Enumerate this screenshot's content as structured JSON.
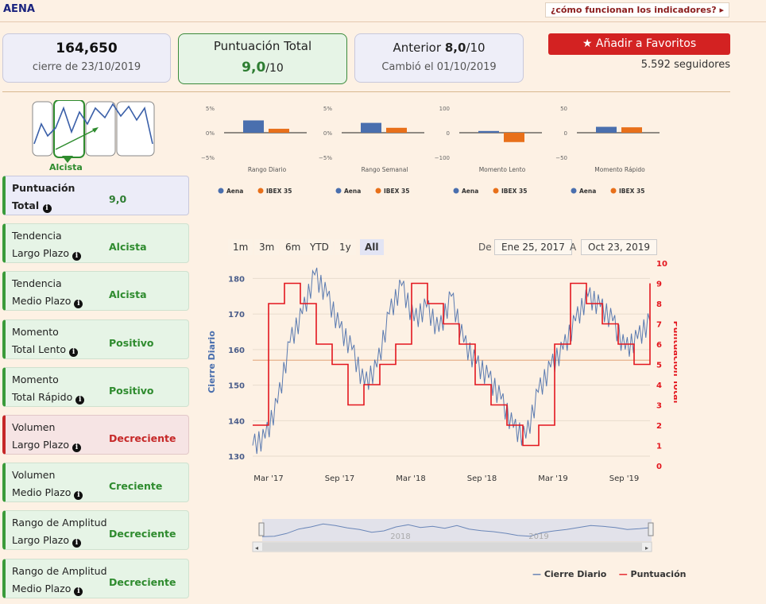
{
  "header": {
    "ticker": "AENA",
    "how_link": "¿cómo funcionan los indicadores?",
    "how_link_arrow": "▸"
  },
  "cards": {
    "price": "164,650",
    "price_sub": "cierre de 23/10/2019",
    "score_label": "Puntuación Total",
    "score_value": "9,0",
    "score_den": "/10",
    "prev_label": "Anterior",
    "prev_value": "8,0",
    "prev_den": "/10",
    "prev_sub": "Cambió el 01/10/2019"
  },
  "favorites": {
    "icon": "star-icon",
    "label": "Añadir a Favoritos",
    "followers": "5.592 seguidores"
  },
  "thumb": {
    "label": "Alcista"
  },
  "indicators": [
    {
      "line1": "Puntuación",
      "line2": "Total",
      "value": "9,0"
    },
    {
      "line1": "Tendencia",
      "line2": "Largo Plazo",
      "value": "Alcista"
    },
    {
      "line1": "Tendencia",
      "line2": "Medio Plazo",
      "value": "Alcista"
    },
    {
      "line1": "Momento",
      "line2": "Total Lento",
      "value": "Positivo"
    },
    {
      "line1": "Momento",
      "line2": "Total Rápido",
      "value": "Positivo"
    },
    {
      "line1": "Volumen",
      "line2": "Largo Plazo",
      "value": "Decreciente"
    },
    {
      "line1": "Volumen",
      "line2": "Medio Plazo",
      "value": "Creciente"
    },
    {
      "line1": "Rango de Amplitud",
      "line2": "Largo Plazo",
      "value": "Decreciente"
    },
    {
      "line1": "Rango de Amplitud",
      "line2": "Medio Plazo",
      "value": "Decreciente"
    }
  ],
  "info_icon": "i",
  "colors": {
    "aena": "#4a6fae",
    "ibex": "#e8701a",
    "price": "#5a7ab0",
    "score": "#e3161e",
    "positive": "#2e8b2e",
    "negative": "#c62828"
  },
  "chart_data": [
    {
      "type": "bar",
      "title": "",
      "xlabel": "Rango Diario",
      "yticks": [
        "5%",
        "0%",
        "−5%"
      ],
      "ylim": [
        -5,
        5
      ],
      "series": [
        {
          "name": "Aena",
          "values": [
            2.5
          ]
        },
        {
          "name": "IBEX 35",
          "values": [
            0.8
          ]
        }
      ]
    },
    {
      "type": "bar",
      "title": "",
      "xlabel": "Rango Semanal",
      "yticks": [
        "5%",
        "0%",
        "−5%"
      ],
      "ylim": [
        -5,
        5
      ],
      "series": [
        {
          "name": "Aena",
          "values": [
            2.0
          ]
        },
        {
          "name": "IBEX 35",
          "values": [
            1.0
          ]
        }
      ]
    },
    {
      "type": "bar",
      "title": "",
      "xlabel": "Momento Lento",
      "yticks": [
        "100",
        "0",
        "−100"
      ],
      "ylim": [
        -100,
        100
      ],
      "series": [
        {
          "name": "Aena",
          "values": [
            7
          ]
        },
        {
          "name": "IBEX 35",
          "values": [
            -38
          ]
        }
      ]
    },
    {
      "type": "bar",
      "title": "",
      "xlabel": "Momento Rápido",
      "yticks": [
        "50",
        "0",
        "−50"
      ],
      "ylim": [
        -50,
        50
      ],
      "series": [
        {
          "name": "Aena",
          "values": [
            12
          ]
        },
        {
          "name": "IBEX 35",
          "values": [
            11
          ]
        }
      ]
    },
    {
      "type": "line",
      "title": "",
      "ylabel": "Cierre Diario",
      "y2label": "Puntuación Total",
      "ylim": [
        128,
        185
      ],
      "y2lim": [
        0,
        10
      ],
      "yticks": [
        "130",
        "140",
        "150",
        "160",
        "170",
        "180"
      ],
      "y2ticks": [
        "0",
        "1",
        "2",
        "3",
        "4",
        "5",
        "6",
        "7",
        "8",
        "9",
        "10"
      ],
      "xticks": [
        "Mar '17",
        "Sep '17",
        "Mar '18",
        "Sep '18",
        "Mar '19",
        "Sep '19"
      ],
      "navigator_labels": [
        "2018",
        "2019"
      ],
      "range_buttons": [
        "1m",
        "3m",
        "6m",
        "YTD",
        "1y",
        "All"
      ],
      "selected_range": "All",
      "from_label": "De",
      "from_date": "Ene 25, 2017",
      "to_label": "A",
      "to_date": "Oct 23, 2019",
      "reference_line": 157,
      "series": [
        {
          "name": "Cierre Diario",
          "x": [
            "Ene 2017",
            "Mar 2017",
            "Abr 2017",
            "May 2017",
            "Jun 2017",
            "Jul 2017",
            "Ago 2017",
            "Sep 2017",
            "Oct 2017",
            "Nov 2017",
            "Dic 2017",
            "Ene 2018",
            "Feb 2018",
            "Mar 2018",
            "Abr 2018",
            "May 2018",
            "Jun 2018",
            "Jul 2018",
            "Ago 2018",
            "Sep 2018",
            "Oct 2018",
            "Nov 2018",
            "Dic 2018",
            "Ene 2019",
            "Feb 2019",
            "Mar 2019",
            "Abr 2019",
            "May 2019",
            "Jun 2019",
            "Jul 2019",
            "Ago 2019",
            "Sep 2019",
            "Oct 2019"
          ],
          "values": [
            133,
            135,
            145,
            162,
            170,
            181,
            175,
            166,
            160,
            150,
            155,
            170,
            178,
            168,
            172,
            165,
            175,
            162,
            156,
            152,
            146,
            138,
            135,
            148,
            155,
            160,
            168,
            175,
            172,
            168,
            160,
            163,
            168
          ]
        },
        {
          "name": "Puntuación",
          "x": [
            "Ene 2017",
            "Mar 2017",
            "Jun 2017",
            "Ago 2017",
            "Sep 2017",
            "Oct 2017",
            "Nov 2017",
            "Dic 2017",
            "Ene 2018",
            "Feb 2018",
            "Abr 2018",
            "May 2018",
            "Jun 2018",
            "Jul 2018",
            "Ago 2018",
            "Sep 2018",
            "Oct 2018",
            "Dic 2018",
            "Ene 2019",
            "Mar 2019",
            "Abr 2019",
            "Jun 2019",
            "Jul 2019",
            "Ago 2019",
            "Sep 2019",
            "Oct 2019"
          ],
          "values": [
            2,
            8,
            9,
            8,
            6,
            5,
            3,
            4,
            5,
            6,
            9,
            8,
            7,
            6,
            4,
            3,
            2,
            1,
            2,
            6,
            9,
            8,
            7,
            6,
            5,
            9
          ]
        }
      ]
    }
  ]
}
